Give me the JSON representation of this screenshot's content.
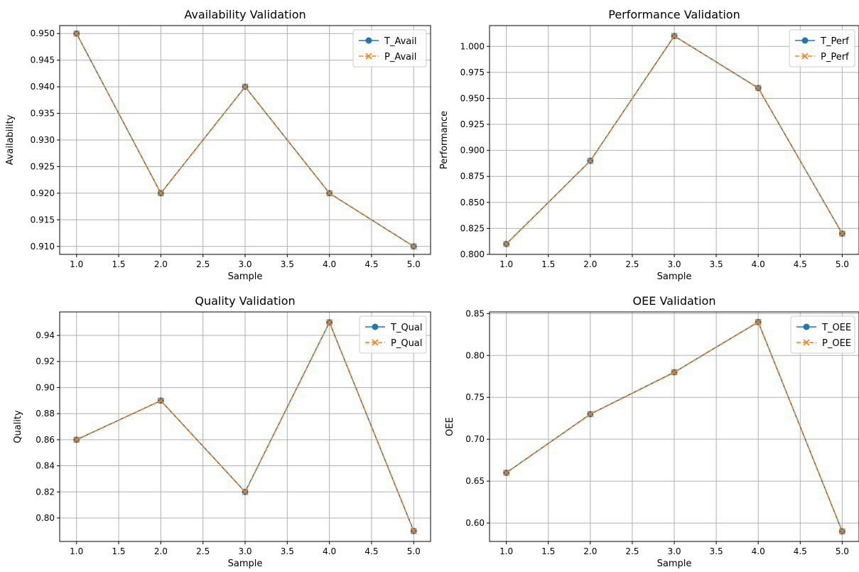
{
  "colors": {
    "true_series": "#1f77b4",
    "pred_series": "#ff7f0e",
    "grid": "#b0b0b0",
    "axes": "#000000"
  },
  "chart_data": [
    {
      "type": "line",
      "title": "Availability Validation",
      "xlabel": "Sample",
      "ylabel": "Availability",
      "xlim": [
        0.8,
        5.2
      ],
      "ylim": [
        0.9085,
        0.9515
      ],
      "xticks": [
        1.0,
        1.5,
        2.0,
        2.5,
        3.0,
        3.5,
        4.0,
        4.5,
        5.0
      ],
      "xtick_labels": [
        "1.0",
        "1.5",
        "2.0",
        "2.5",
        "3.0",
        "3.5",
        "4.0",
        "4.5",
        "5.0"
      ],
      "yticks": [
        0.91,
        0.915,
        0.92,
        0.925,
        0.93,
        0.935,
        0.94,
        0.945,
        0.95
      ],
      "ytick_labels": [
        "0.910",
        "0.915",
        "0.920",
        "0.925",
        "0.930",
        "0.935",
        "0.940",
        "0.945",
        "0.950"
      ],
      "grid": true,
      "legend_position": "top-right",
      "x": [
        1,
        2,
        3,
        4,
        5
      ],
      "series": [
        {
          "name": "T_Avail",
          "style": "solid-circle",
          "values": [
            0.95,
            0.92,
            0.94,
            0.92,
            0.91
          ]
        },
        {
          "name": "P_Avail",
          "style": "dashed-x",
          "values": [
            0.95,
            0.92,
            0.94,
            0.92,
            0.91
          ]
        }
      ]
    },
    {
      "type": "line",
      "title": "Performance Validation",
      "xlabel": "Sample",
      "ylabel": "Performance",
      "xlim": [
        0.8,
        5.2
      ],
      "ylim": [
        0.8,
        1.02
      ],
      "xticks": [
        1.0,
        1.5,
        2.0,
        2.5,
        3.0,
        3.5,
        4.0,
        4.5,
        5.0
      ],
      "xtick_labels": [
        "1.0",
        "1.5",
        "2.0",
        "2.5",
        "3.0",
        "3.5",
        "4.0",
        "4.5",
        "5.0"
      ],
      "yticks": [
        0.8,
        0.825,
        0.85,
        0.875,
        0.9,
        0.925,
        0.95,
        0.975,
        1.0
      ],
      "ytick_labels": [
        "0.800",
        "0.825",
        "0.850",
        "0.875",
        "0.900",
        "0.925",
        "0.950",
        "0.975",
        "1.000"
      ],
      "grid": true,
      "legend_position": "top-right",
      "x": [
        1,
        2,
        3,
        4,
        5
      ],
      "series": [
        {
          "name": "T_Perf",
          "style": "solid-circle",
          "values": [
            0.81,
            0.89,
            1.01,
            0.96,
            0.82
          ]
        },
        {
          "name": "P_Perf",
          "style": "dashed-x",
          "values": [
            0.81,
            0.89,
            1.01,
            0.96,
            0.82
          ]
        }
      ]
    },
    {
      "type": "line",
      "title": "Quality Validation",
      "xlabel": "Sample",
      "ylabel": "Quality",
      "xlim": [
        0.8,
        5.2
      ],
      "ylim": [
        0.782,
        0.958
      ],
      "xticks": [
        1.0,
        1.5,
        2.0,
        2.5,
        3.0,
        3.5,
        4.0,
        4.5,
        5.0
      ],
      "xtick_labels": [
        "1.0",
        "1.5",
        "2.0",
        "2.5",
        "3.0",
        "3.5",
        "4.0",
        "4.5",
        "5.0"
      ],
      "yticks": [
        0.8,
        0.82,
        0.84,
        0.86,
        0.88,
        0.9,
        0.92,
        0.94
      ],
      "ytick_labels": [
        "0.80",
        "0.82",
        "0.84",
        "0.86",
        "0.88",
        "0.90",
        "0.92",
        "0.94"
      ],
      "grid": true,
      "legend_position": "top-right",
      "x": [
        1,
        2,
        3,
        4,
        5
      ],
      "series": [
        {
          "name": "T_Qual",
          "style": "solid-circle",
          "values": [
            0.86,
            0.89,
            0.82,
            0.95,
            0.79
          ]
        },
        {
          "name": "P_Qual",
          "style": "dashed-x",
          "values": [
            0.86,
            0.89,
            0.82,
            0.95,
            0.79
          ]
        }
      ]
    },
    {
      "type": "line",
      "title": "OEE Validation",
      "xlabel": "Sample",
      "ylabel": "OEE",
      "xlim": [
        0.8,
        5.2
      ],
      "ylim": [
        0.578,
        0.852
      ],
      "xticks": [
        1.0,
        1.5,
        2.0,
        2.5,
        3.0,
        3.5,
        4.0,
        4.5,
        5.0
      ],
      "xtick_labels": [
        "1.0",
        "1.5",
        "2.0",
        "2.5",
        "3.0",
        "3.5",
        "4.0",
        "4.5",
        "5.0"
      ],
      "yticks": [
        0.6,
        0.65,
        0.7,
        0.75,
        0.8,
        0.85
      ],
      "ytick_labels": [
        "0.60",
        "0.65",
        "0.70",
        "0.75",
        "0.80",
        "0.85"
      ],
      "grid": true,
      "legend_position": "top-right",
      "x": [
        1,
        2,
        3,
        4,
        5
      ],
      "series": [
        {
          "name": "T_OEE",
          "style": "solid-circle",
          "values": [
            0.66,
            0.73,
            0.78,
            0.84,
            0.59
          ]
        },
        {
          "name": "P_OEE",
          "style": "dashed-x",
          "values": [
            0.66,
            0.73,
            0.78,
            0.84,
            0.59
          ]
        }
      ]
    }
  ]
}
